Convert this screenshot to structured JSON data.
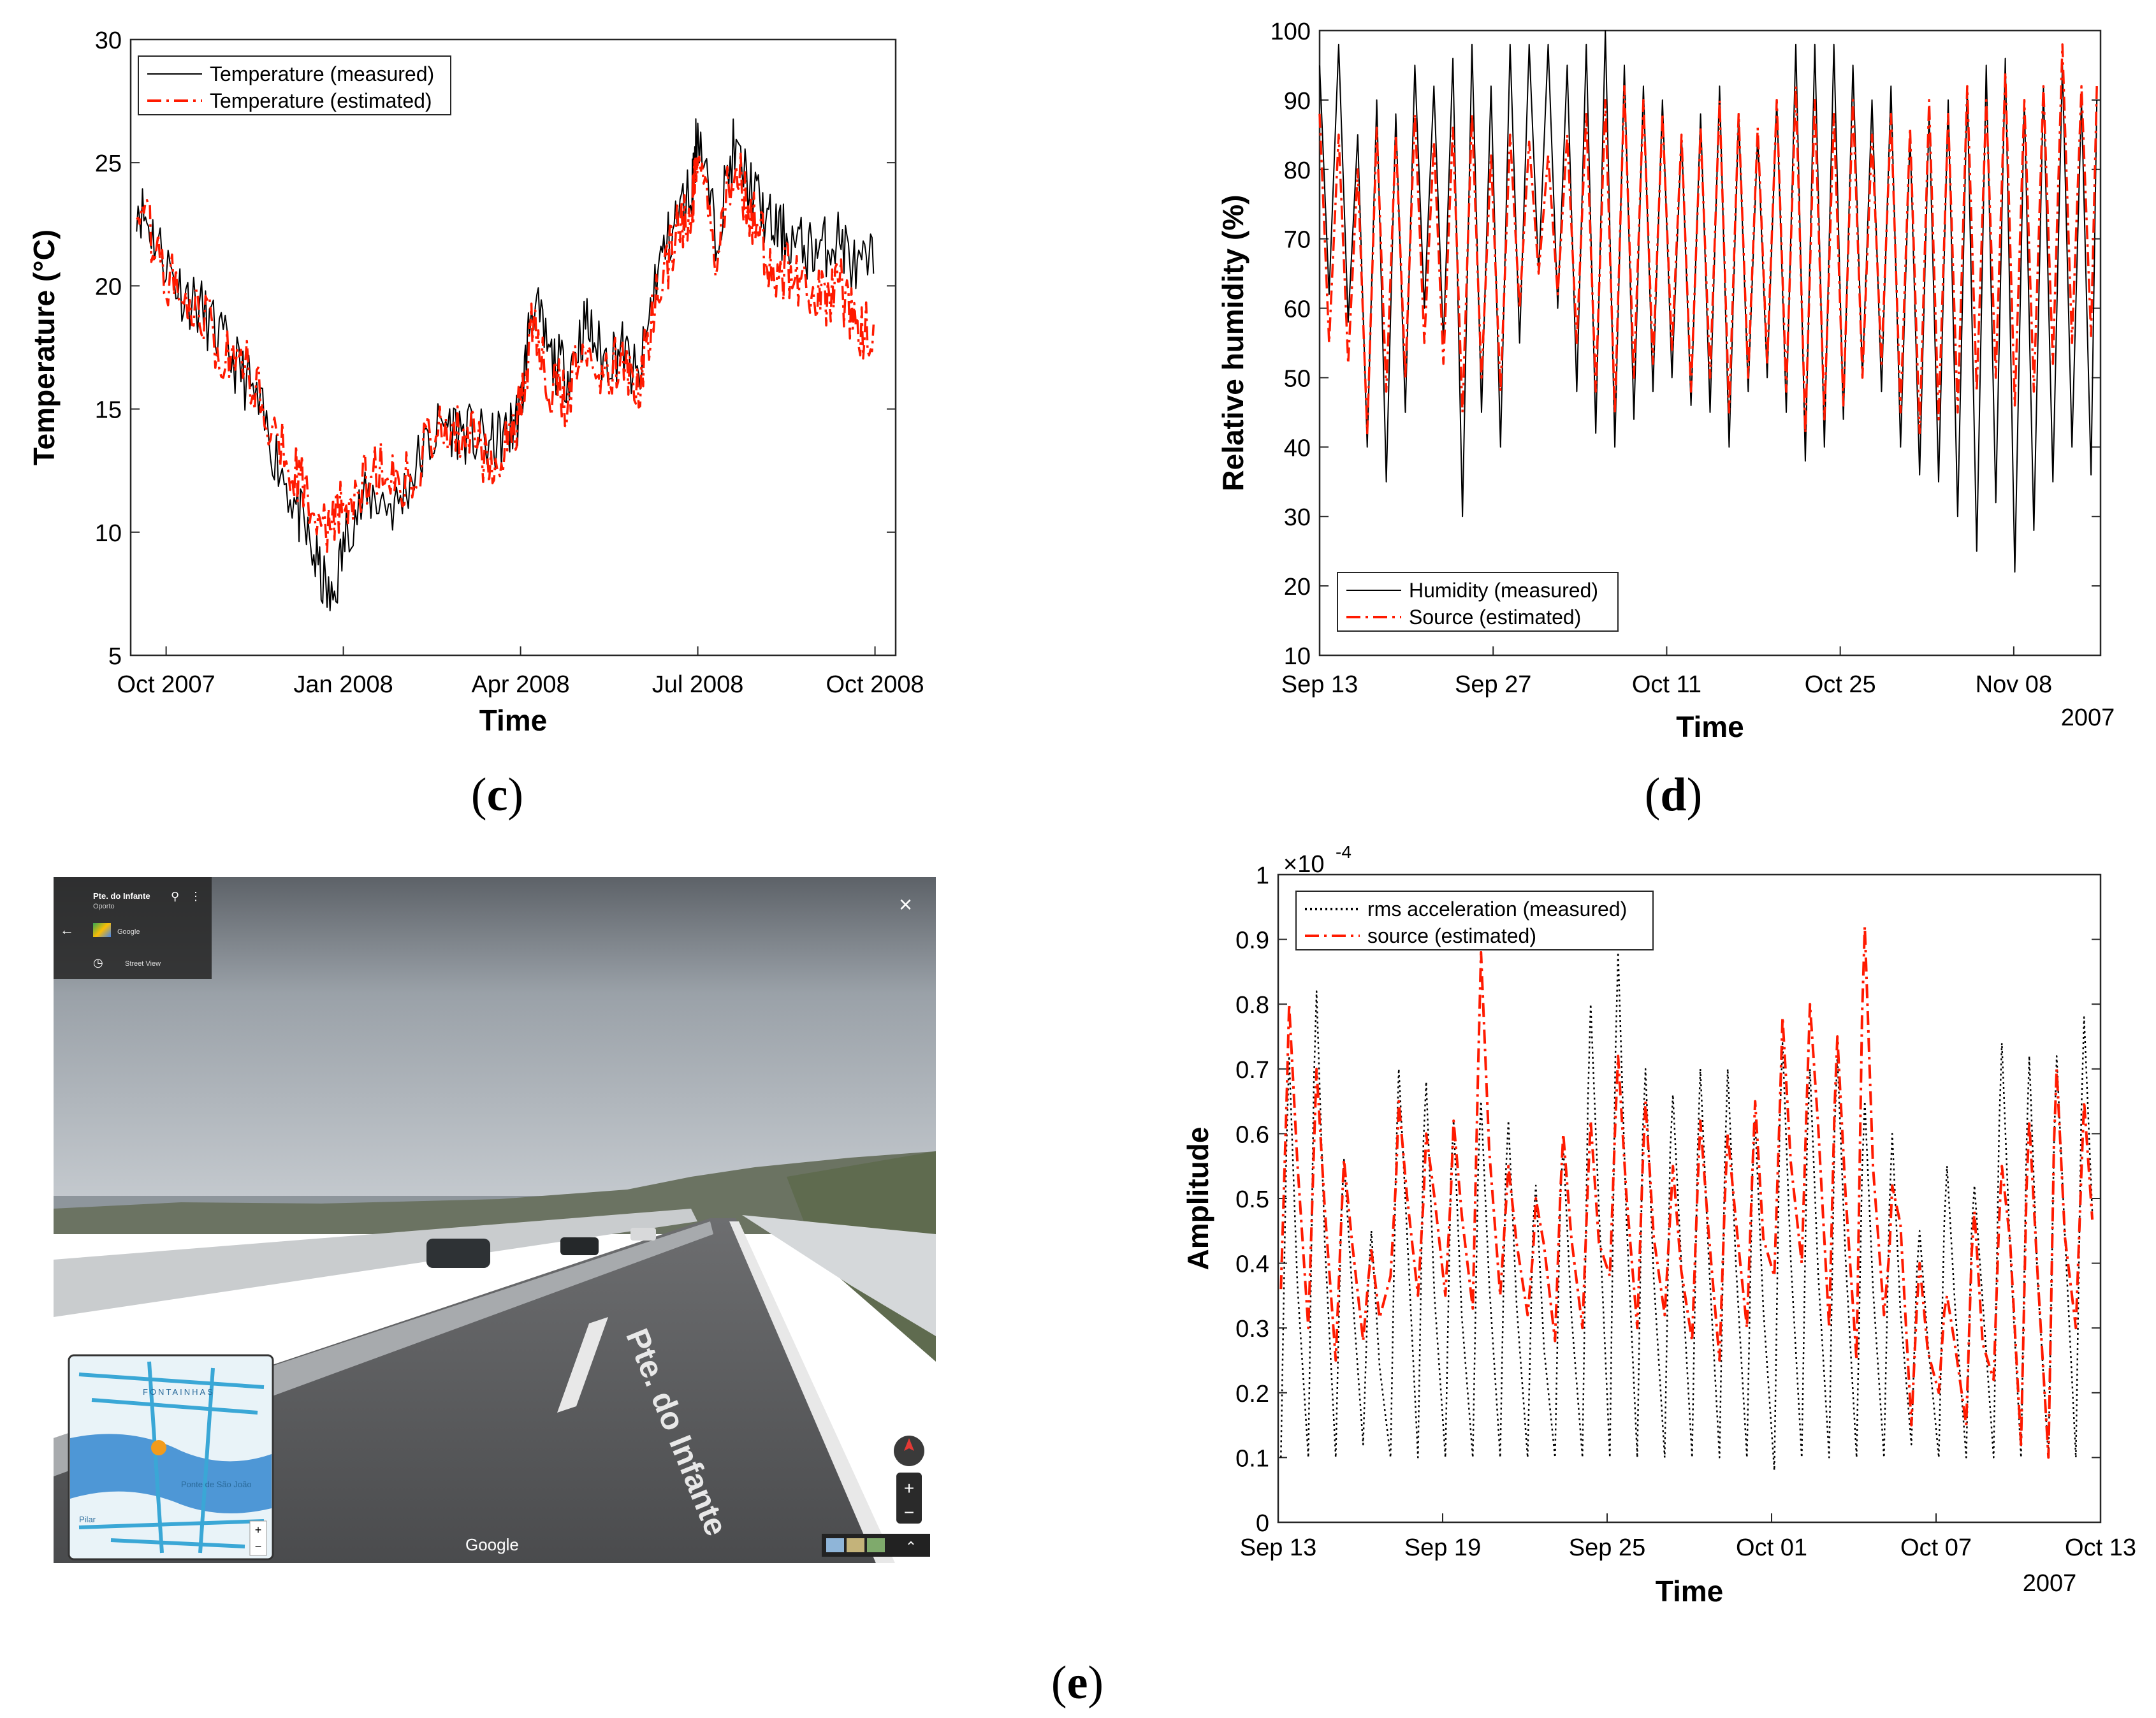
{
  "panels": {
    "c": {
      "label": "c"
    },
    "d": {
      "label": "d"
    },
    "e": {
      "label": "e"
    }
  },
  "chart_data": [
    {
      "id": "temperature",
      "type": "line",
      "title": "",
      "xlabel": "Time",
      "ylabel": "Temperature (°C)",
      "ylim": [
        5,
        30
      ],
      "yticks": [
        "5",
        "10",
        "15",
        "20",
        "25",
        "30"
      ],
      "xlim_months": [
        -0.6,
        12.35
      ],
      "xticks": [
        {
          "label": "Oct 2007",
          "month": 0
        },
        {
          "label": "Jan 2008",
          "month": 3
        },
        {
          "label": "Apr 2008",
          "month": 6
        },
        {
          "label": "Jul 2008",
          "month": 9
        },
        {
          "label": "Oct 2008",
          "month": 12
        }
      ],
      "legend": [
        "Temperature (measured)",
        "Temperature (estimated)"
      ],
      "legend_position": "top-left",
      "series": [
        {
          "name": "Temperature (measured)",
          "color": "#000000",
          "style": "solid",
          "x": [
            -0.5,
            -0.2,
            0.2,
            0.6,
            1.0,
            1.4,
            1.8,
            2.2,
            2.5,
            2.8,
            3.1,
            3.5,
            3.9,
            4.3,
            4.7,
            5.1,
            5.5,
            5.8,
            6.0,
            6.2,
            6.5,
            6.8,
            7.1,
            7.4,
            7.7,
            8.0,
            8.3,
            8.6,
            8.9,
            9.0,
            9.3,
            9.6,
            9.9,
            10.2,
            10.5,
            10.8,
            11.1,
            11.4,
            11.7,
            12.0
          ],
          "y": [
            23.5,
            22.0,
            20.0,
            19.0,
            17.5,
            16.0,
            13.5,
            11.0,
            9.0,
            7.0,
            10.5,
            11.5,
            11.0,
            13.0,
            14.5,
            14.0,
            13.5,
            14.0,
            15.0,
            19.5,
            17.0,
            16.5,
            18.5,
            17.0,
            17.5,
            16.0,
            20.5,
            22.5,
            24.0,
            26.5,
            22.0,
            25.5,
            24.0,
            22.5,
            22.0,
            21.5,
            21.5,
            22.0,
            20.5,
            21.0
          ]
        },
        {
          "name": "Temperature (estimated)",
          "color": "#ff1a00",
          "style": "dashdot",
          "x": [
            -0.5,
            -0.2,
            0.2,
            0.6,
            1.0,
            1.4,
            1.8,
            2.2,
            2.5,
            2.8,
            3.1,
            3.5,
            3.9,
            4.3,
            4.7,
            5.1,
            5.5,
            5.8,
            6.0,
            6.2,
            6.5,
            6.8,
            7.1,
            7.4,
            7.7,
            8.0,
            8.3,
            8.6,
            8.9,
            9.0,
            9.3,
            9.6,
            9.9,
            10.2,
            10.5,
            10.8,
            11.1,
            11.4,
            11.7,
            12.0
          ],
          "y": [
            24.0,
            21.5,
            19.5,
            19.0,
            17.0,
            16.5,
            14.5,
            12.5,
            10.5,
            10.0,
            11.5,
            12.5,
            12.0,
            13.0,
            14.5,
            14.0,
            13.0,
            14.0,
            15.0,
            18.5,
            16.0,
            15.5,
            18.0,
            16.5,
            17.0,
            16.0,
            19.5,
            22.0,
            23.0,
            26.0,
            21.0,
            25.0,
            23.0,
            21.0,
            20.5,
            20.0,
            19.5,
            20.0,
            18.5,
            18.0
          ]
        }
      ]
    },
    {
      "id": "humidity",
      "type": "line",
      "title": "",
      "xlabel": "Time",
      "xlabel_secondary": "2007",
      "ylabel": "Relative humidity (%)",
      "ylim": [
        10,
        100
      ],
      "yticks": [
        "10",
        "20",
        "30",
        "40",
        "50",
        "60",
        "70",
        "80",
        "90",
        "100"
      ],
      "xlim_days": [
        0,
        63
      ],
      "xticks": [
        {
          "label": "Sep 13",
          "day": 0
        },
        {
          "label": "Sep 27",
          "day": 14
        },
        {
          "label": "Oct 11",
          "day": 28
        },
        {
          "label": "Oct 25",
          "day": 42
        },
        {
          "label": "Nov 08",
          "day": 56
        }
      ],
      "legend": [
        "Humidity (measured)",
        "Source (estimated)"
      ],
      "legend_position": "bottom-left",
      "series": [
        {
          "name": "Humidity (measured)",
          "color": "#000000",
          "style": "solid",
          "low": [
            62,
            58,
            40,
            35,
            45,
            60,
            55,
            30,
            45,
            40,
            55,
            65,
            60,
            48,
            42,
            40,
            44,
            48,
            50,
            46,
            45,
            40,
            48,
            50,
            45,
            38,
            40,
            44,
            50,
            48,
            40,
            36,
            35,
            30,
            25,
            32,
            22,
            28,
            35,
            40,
            36
          ],
          "high": [
            95,
            98,
            85,
            90,
            88,
            95,
            92,
            96,
            98,
            92,
            98,
            98,
            98,
            95,
            98,
            100,
            95,
            92,
            90,
            85,
            88,
            92,
            88,
            85,
            90,
            98,
            98,
            98,
            95,
            90,
            92,
            85,
            88,
            90,
            92,
            95,
            96,
            90,
            92,
            95,
            90
          ]
        },
        {
          "name": "Source (estimated)",
          "color": "#ff1a00",
          "style": "dashdot",
          "low": [
            55,
            52,
            42,
            48,
            50,
            55,
            52,
            45,
            50,
            48,
            60,
            65,
            62,
            55,
            48,
            45,
            50,
            52,
            54,
            48,
            50,
            45,
            50,
            52,
            48,
            42,
            44,
            46,
            50,
            52,
            45,
            42,
            44,
            45,
            48,
            50,
            46,
            48,
            52,
            55,
            56
          ],
          "high": [
            88,
            85,
            80,
            86,
            85,
            88,
            84,
            86,
            88,
            82,
            85,
            84,
            82,
            85,
            88,
            90,
            92,
            90,
            88,
            85,
            86,
            90,
            88,
            86,
            90,
            92,
            90,
            88,
            90,
            85,
            88,
            86,
            90,
            88,
            92,
            90,
            94,
            90,
            92,
            98,
            92
          ]
        }
      ]
    },
    {
      "id": "acceleration",
      "type": "line",
      "title": "",
      "xlabel": "Time",
      "xlabel_secondary": "2007",
      "ylabel": "Amplitude",
      "yexponent_base": "×10",
      "yexponent_power": "-4",
      "ylim": [
        0,
        1
      ],
      "yticks": [
        "0",
        "0.1",
        "0.2",
        "0.3",
        "0.4",
        "0.5",
        "0.6",
        "0.7",
        "0.8",
        "0.9",
        "1"
      ],
      "xlim_days": [
        0,
        30
      ],
      "xticks": [
        {
          "label": "Sep 13",
          "day": 0
        },
        {
          "label": "Sep 19",
          "day": 6
        },
        {
          "label": "Sep 25",
          "day": 12
        },
        {
          "label": "Oct 01",
          "day": 18
        },
        {
          "label": "Oct 07",
          "day": 24
        },
        {
          "label": "Oct 13",
          "day": 30
        }
      ],
      "legend": [
        "rms acceleration (measured)",
        "source (estimated)"
      ],
      "legend_position": "top-left",
      "series": [
        {
          "name": "rms acceleration (measured)",
          "color": "#000000",
          "style": "dotted",
          "low": [
            0.1,
            0.1,
            0.1,
            0.12,
            0.1,
            0.1,
            0.1,
            0.1,
            0.1,
            0.1,
            0.1,
            0.1,
            0.1,
            0.1,
            0.1,
            0.1,
            0.1,
            0.1,
            0.08,
            0.1,
            0.1,
            0.1,
            0.1,
            0.12,
            0.1,
            0.1,
            0.1,
            0.1,
            0.1,
            0.1
          ],
          "high": [
            0.72,
            0.82,
            0.56,
            0.45,
            0.7,
            0.68,
            0.62,
            0.65,
            0.62,
            0.52,
            0.58,
            0.8,
            0.88,
            0.7,
            0.66,
            0.7,
            0.7,
            0.62,
            0.74,
            0.7,
            0.72,
            0.65,
            0.6,
            0.45,
            0.55,
            0.52,
            0.74,
            0.72,
            0.72,
            0.78
          ]
        },
        {
          "name": "source (estimated)",
          "color": "#ff1a00",
          "style": "dashdot",
          "low": [
            0.36,
            0.3,
            0.25,
            0.28,
            0.38,
            0.35,
            0.35,
            0.33,
            0.35,
            0.32,
            0.28,
            0.3,
            0.38,
            0.3,
            0.32,
            0.28,
            0.25,
            0.3,
            0.38,
            0.4,
            0.3,
            0.25,
            0.32,
            0.15,
            0.2,
            0.15,
            0.22,
            0.12,
            0.1,
            0.3
          ],
          "high": [
            0.8,
            0.7,
            0.56,
            0.42,
            0.65,
            0.6,
            0.62,
            0.88,
            0.55,
            0.5,
            0.6,
            0.62,
            0.72,
            0.65,
            0.55,
            0.62,
            0.6,
            0.65,
            0.78,
            0.8,
            0.75,
            0.92,
            0.52,
            0.4,
            0.35,
            0.48,
            0.55,
            0.62,
            0.7,
            0.65
          ]
        }
      ]
    }
  ],
  "streetview": {
    "place_title": "Pte. do Infante",
    "place_subtitle": "Oporto",
    "provider": "Google",
    "mode_label": "Street View",
    "close_symbol": "×",
    "road_marking": "Pte. do Infante",
    "watermark": "Google",
    "map_labels": [
      "FONTAINHAS",
      "Ponte de São João",
      "Pilar"
    ]
  }
}
